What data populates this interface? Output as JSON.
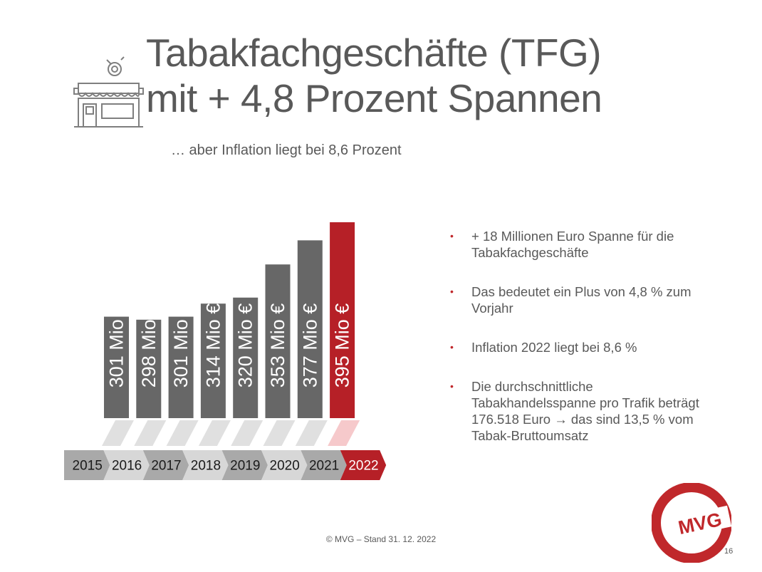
{
  "header": {
    "title_line1": "Tabakfachgeschäfte (TFG)",
    "title_line2": "mit + 4,8 Prozent Spannen",
    "subtitle": "… aber Inflation liegt bei 8,6 Prozent"
  },
  "chart_data": {
    "type": "bar",
    "categories": [
      "2015",
      "2016",
      "2017",
      "2018",
      "2019",
      "2020",
      "2021",
      "2022"
    ],
    "values": [
      301,
      298,
      301,
      314,
      320,
      353,
      377,
      395
    ],
    "data_labels": [
      "301 Mio €",
      "298 Mio €",
      "301 Mio €",
      "314 Mio €",
      "320 Mio €",
      "353 Mio €",
      "377 Mio €",
      "395 Mio €"
    ],
    "highlight_category": "2022",
    "bar_color": "#676767",
    "highlight_color": "#b62027",
    "label_color": "#ffffff",
    "axis_color": "#a6a6a6",
    "grid": false
  },
  "bullets": [
    "+ 18 Millionen Euro Spanne für die Tabakfachgeschäfte",
    "Das bedeutet ein Plus von 4,8 % zum Vorjahr",
    "Inflation 2022 liegt bei 8,6 %",
    "Die durchschnittliche Tabakhandelsspanne pro Trafik beträgt 176.518 Euro → das sind 13,5 % vom Tabak-Bruttoumsatz"
  ],
  "footer": {
    "text": "© MVG – Stand 31. 12. 2022"
  },
  "logo": {
    "text": "MVG",
    "color": "#c0282b"
  },
  "page_number": "16"
}
